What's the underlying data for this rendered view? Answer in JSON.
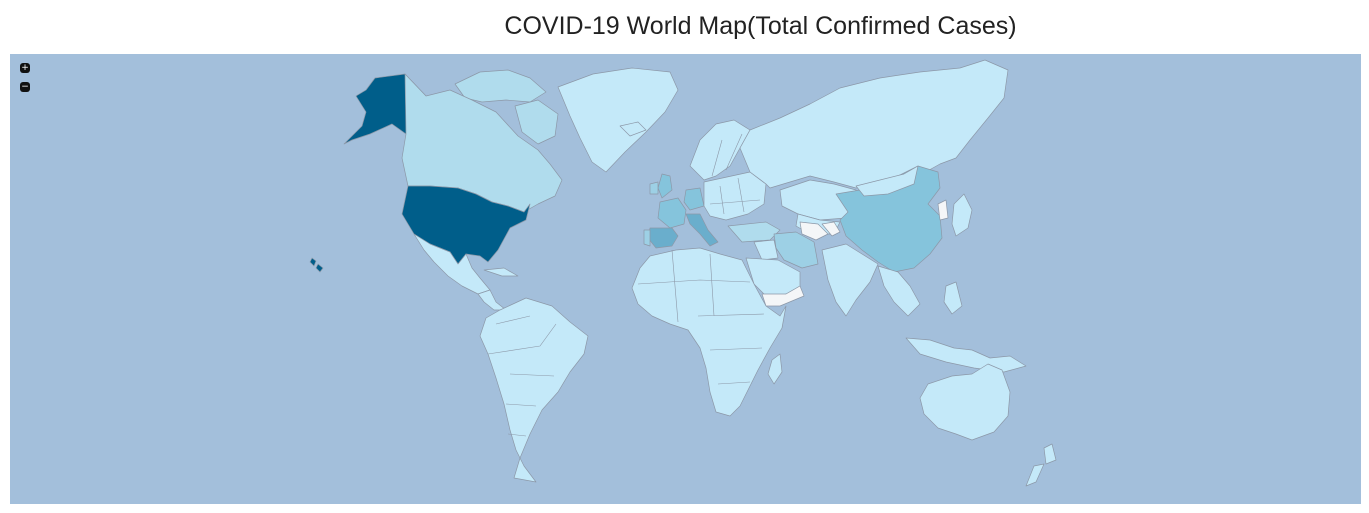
{
  "map": {
    "title": "COVID-19 World Map(Total Confirmed Cases)",
    "colors": {
      "ocean": "#a3bfdb",
      "lowest": "#c4e9f9",
      "low": "#b0dced",
      "medium_low": "#9dd0e5",
      "medium": "#85c4dc",
      "medium_high": "#6aaecc",
      "highest": "#005e8a",
      "no_data": "#f4f6f8"
    },
    "controls": {
      "zoom_in_icon": "plus-icon",
      "zoom_out_icon": "minus-icon"
    },
    "highlighted_regions": [
      {
        "region": "United States",
        "level": "highest"
      },
      {
        "region": "China",
        "level": "medium"
      },
      {
        "region": "Spain",
        "level": "medium_high"
      },
      {
        "region": "Italy",
        "level": "medium_high"
      },
      {
        "region": "Germany",
        "level": "medium"
      },
      {
        "region": "France",
        "level": "medium"
      },
      {
        "region": "United Kingdom",
        "level": "medium"
      },
      {
        "region": "Iran",
        "level": "medium_low"
      },
      {
        "region": "Canada",
        "level": "low"
      },
      {
        "region": "Turkey",
        "level": "low"
      }
    ]
  }
}
